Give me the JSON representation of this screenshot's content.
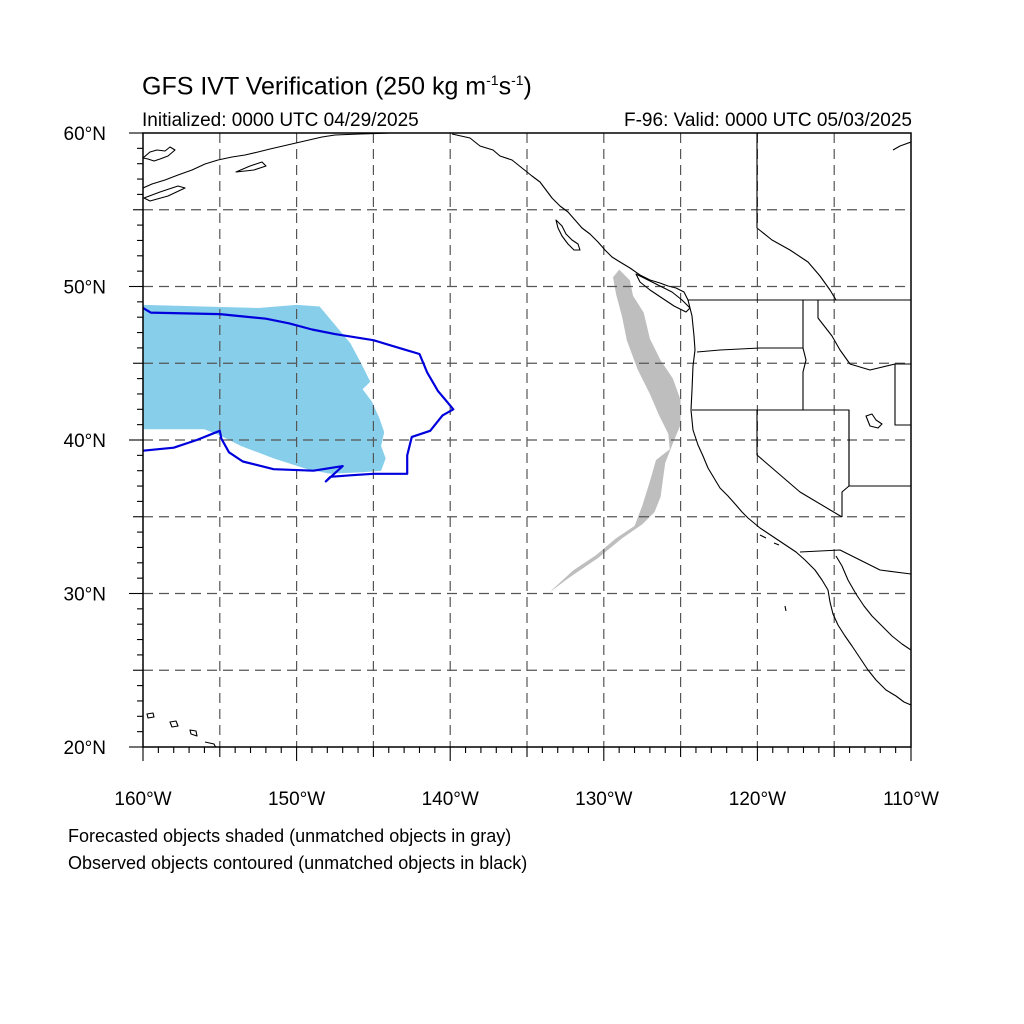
{
  "header": {
    "title_main": "GFS IVT Verification (250 kg m",
    "title_exp1": "-1",
    "title_mid": "s",
    "title_exp2": "-1",
    "title_end": ")",
    "initialized": "Initialized: 0000 UTC 04/29/2025",
    "valid": "F-96: Valid: 0000 UTC 05/03/2025"
  },
  "axes": {
    "lat_labels": [
      "60°N",
      "50°N",
      "40°N",
      "30°N",
      "20°N"
    ],
    "lon_labels": [
      "160°W",
      "150°W",
      "140°W",
      "130°W",
      "120°W",
      "110°W"
    ],
    "lat_range": [
      20,
      60
    ],
    "lon_range": [
      -160,
      -110
    ],
    "grid_spacing_deg": 5,
    "grid": true
  },
  "legend": {
    "line1": "Forecasted objects shaded (unmatched objects in gray)",
    "line2": "Observed objects contoured (unmatched objects in black)"
  },
  "colors": {
    "matched_forecast_fill": "#87ceeb",
    "unmatched_forecast_fill": "#bebebe",
    "observed_contour": "#0000dd",
    "coastline": "#000000",
    "grid": "#555555"
  },
  "chart_data": {
    "type": "map",
    "objects": [
      {
        "kind": "forecast-matched",
        "render": "shaded",
        "lonlat": [
          [
            -160,
            48.8
          ],
          [
            -152.5,
            48.6
          ],
          [
            -150,
            48.8
          ],
          [
            -148.5,
            48.7
          ],
          [
            -147.5,
            47.5
          ],
          [
            -146.5,
            46.3
          ],
          [
            -145.8,
            45.0
          ],
          [
            -145.2,
            43.8
          ],
          [
            -145.7,
            43.3
          ],
          [
            -145.1,
            42.5
          ],
          [
            -144.6,
            41.4
          ],
          [
            -144.3,
            40.5
          ],
          [
            -144.5,
            39.6
          ],
          [
            -144.2,
            38.8
          ],
          [
            -144.5,
            38.0
          ],
          [
            -145.7,
            37.9
          ],
          [
            -147.8,
            37.8
          ],
          [
            -149.3,
            38.1
          ],
          [
            -151.5,
            38.8
          ],
          [
            -153.6,
            39.6
          ],
          [
            -155.0,
            40.3
          ],
          [
            -156.0,
            40.7
          ],
          [
            -158.0,
            40.7
          ],
          [
            -160,
            40.7
          ]
        ]
      },
      {
        "kind": "forecast-unmatched",
        "render": "shaded",
        "lonlat": [
          [
            -129.0,
            51.1
          ],
          [
            -128.3,
            50.4
          ],
          [
            -128.1,
            49.4
          ],
          [
            -127.4,
            48.3
          ],
          [
            -127.0,
            46.6
          ],
          [
            -126.3,
            45.2
          ],
          [
            -125.5,
            44.0
          ],
          [
            -125.0,
            42.6
          ],
          [
            -125.0,
            41.0
          ],
          [
            -125.5,
            39.8
          ],
          [
            -126.0,
            38.5
          ],
          [
            -126.3,
            36.3
          ],
          [
            -126.7,
            35.3
          ],
          [
            -127.5,
            34.5
          ],
          [
            -128.8,
            33.6
          ],
          [
            -130.4,
            32.3
          ],
          [
            -132.3,
            31.0
          ],
          [
            -133.5,
            30.1
          ],
          [
            -133.3,
            30.3
          ],
          [
            -132.0,
            31.5
          ],
          [
            -130.5,
            32.5
          ],
          [
            -129.2,
            33.6
          ],
          [
            -128.0,
            34.4
          ],
          [
            -127.5,
            35.7
          ],
          [
            -127.0,
            37.3
          ],
          [
            -126.6,
            38.7
          ],
          [
            -125.7,
            39.4
          ],
          [
            -125.8,
            40.4
          ],
          [
            -126.4,
            41.6
          ],
          [
            -127.0,
            43.0
          ],
          [
            -127.8,
            44.6
          ],
          [
            -128.5,
            46.5
          ],
          [
            -128.8,
            48.0
          ],
          [
            -129.2,
            49.5
          ],
          [
            -129.4,
            50.6
          ]
        ]
      },
      {
        "kind": "observed-matched",
        "render": "contour",
        "lonlat": [
          [
            -160,
            48.6
          ],
          [
            -159.5,
            48.3
          ],
          [
            -155.0,
            48.2
          ],
          [
            -152.0,
            47.9
          ],
          [
            -150.5,
            47.6
          ],
          [
            -149.0,
            47.2
          ],
          [
            -147.5,
            46.9
          ],
          [
            -145.0,
            46.5
          ],
          [
            -143.0,
            45.9
          ],
          [
            -142.0,
            45.6
          ],
          [
            -141.5,
            44.4
          ],
          [
            -140.8,
            43.2
          ],
          [
            -140.3,
            42.6
          ],
          [
            -139.8,
            42.0
          ],
          [
            -140.5,
            41.6
          ],
          [
            -141.3,
            40.6
          ],
          [
            -142.5,
            40.2
          ],
          [
            -142.8,
            39.0
          ],
          [
            -142.8,
            37.8
          ],
          [
            -145.0,
            37.8
          ],
          [
            -146.5,
            37.7
          ],
          [
            -147.8,
            37.6
          ],
          [
            -148.1,
            37.3
          ],
          [
            -147.0,
            38.3
          ],
          [
            -148.9,
            38.0
          ],
          [
            -151.5,
            38.1
          ],
          [
            -153.5,
            38.6
          ],
          [
            -154.4,
            39.2
          ],
          [
            -154.9,
            40.1
          ],
          [
            -155.0,
            40.6
          ],
          [
            -156.5,
            40.0
          ],
          [
            -158.0,
            39.5
          ],
          [
            -160,
            39.3
          ]
        ]
      }
    ]
  }
}
